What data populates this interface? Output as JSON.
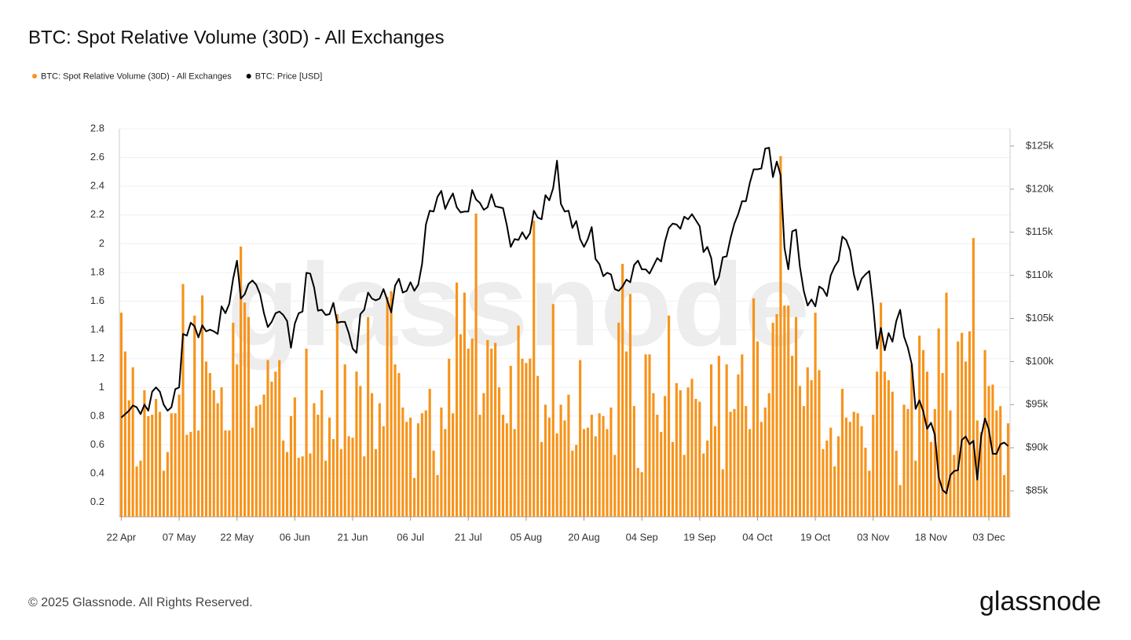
{
  "chart_data": {
    "type": "bar-line",
    "title": "BTC: Spot Relative Volume (30D) - All Exchanges",
    "watermark": "glassnode",
    "footer": "© 2025 Glassnode. All Rights Reserved.",
    "brand": "glassnode",
    "legend": "top-left",
    "grid": true,
    "categories": [
      "22 Apr",
      null,
      null,
      null,
      null,
      null,
      null,
      null,
      null,
      null,
      null,
      null,
      null,
      null,
      null,
      "07 May",
      null,
      null,
      null,
      null,
      null,
      null,
      null,
      null,
      null,
      null,
      null,
      null,
      null,
      null,
      "22 May",
      null,
      null,
      null,
      null,
      null,
      null,
      null,
      null,
      null,
      null,
      null,
      null,
      null,
      null,
      "06 Jun",
      null,
      null,
      null,
      null,
      null,
      null,
      null,
      null,
      null,
      null,
      null,
      null,
      null,
      null,
      "21 Jun",
      null,
      null,
      null,
      null,
      null,
      null,
      null,
      null,
      null,
      null,
      null,
      null,
      null,
      null,
      "06 Jul",
      null,
      null,
      null,
      null,
      null,
      null,
      null,
      null,
      null,
      null,
      null,
      null,
      null,
      null,
      "21 Jul",
      null,
      null,
      null,
      null,
      null,
      null,
      null,
      null,
      null,
      null,
      null,
      null,
      null,
      null,
      "05 Aug",
      null,
      null,
      null,
      null,
      null,
      null,
      null,
      null,
      null,
      null,
      null,
      null,
      null,
      null,
      "20 Aug",
      null,
      null,
      null,
      null,
      null,
      null,
      null,
      null,
      null,
      null,
      null,
      null,
      null,
      null,
      "04 Sep",
      null,
      null,
      null,
      null,
      null,
      null,
      null,
      null,
      null,
      null,
      null,
      null,
      null,
      null,
      "19 Sep",
      null,
      null,
      null,
      null,
      null,
      null,
      null,
      null,
      null,
      null,
      null,
      null,
      null,
      null,
      "04 Oct",
      null,
      null,
      null,
      null,
      null,
      null,
      null,
      null,
      null,
      null,
      null,
      null,
      null,
      null,
      "19 Oct",
      null,
      null,
      null,
      null,
      null,
      null,
      null,
      null,
      null,
      null,
      null,
      null,
      null,
      null,
      "03 Nov",
      null,
      null,
      null,
      null,
      null,
      null,
      null,
      null,
      null,
      null,
      null,
      null,
      null,
      null,
      "18 Nov",
      null,
      null,
      null,
      null,
      null,
      null,
      null,
      null,
      null,
      null,
      null,
      null,
      null,
      null,
      "03 Dec",
      null,
      null,
      null,
      null,
      null
    ],
    "ylim": [
      0.1,
      2.8
    ],
    "yticks": [
      0.2,
      0.4,
      0.6,
      0.8,
      1,
      1.2,
      1.4,
      1.6,
      1.8,
      2,
      2.2,
      2.4,
      2.6,
      2.8
    ],
    "y2lim": [
      82000,
      127000
    ],
    "y2ticks": [
      {
        "value": 85000,
        "label": "$85k"
      },
      {
        "value": 90000,
        "label": "$90k"
      },
      {
        "value": 95000,
        "label": "$95k"
      },
      {
        "value": 100000,
        "label": "$100k"
      },
      {
        "value": 105000,
        "label": "$105k"
      },
      {
        "value": 110000,
        "label": "$110k"
      },
      {
        "value": 115000,
        "label": "$115k"
      },
      {
        "value": 120000,
        "label": "$120k"
      },
      {
        "value": 125000,
        "label": "$125k"
      }
    ],
    "series": [
      {
        "name": "BTC: Spot Relative Volume (30D) - All Exchanges",
        "type": "bar",
        "color": "#f7931a",
        "values": [
          1.52,
          1.25,
          0.91,
          1.14,
          0.45,
          0.49,
          0.98,
          0.8,
          0.81,
          0.92,
          0.83,
          0.42,
          0.55,
          0.82,
          0.82,
          0.95,
          1.72,
          0.67,
          0.69,
          1.5,
          0.7,
          1.64,
          1.18,
          1.1,
          0.98,
          0.89,
          1.0,
          0.7,
          0.7,
          1.45,
          1.16,
          1.98,
          1.59,
          1.49,
          0.72,
          0.87,
          0.88,
          0.95,
          1.19,
          1.04,
          1.11,
          1.19,
          0.63,
          0.55,
          0.8,
          0.93,
          0.51,
          0.52,
          1.27,
          0.54,
          0.89,
          0.81,
          0.98,
          0.49,
          0.79,
          0.64,
          1.51,
          0.57,
          1.16,
          0.66,
          0.65,
          1.11,
          1.01,
          0.52,
          1.49,
          0.96,
          0.57,
          0.89,
          0.73,
          1.63,
          1.67,
          1.16,
          1.1,
          0.86,
          0.76,
          0.79,
          0.37,
          0.75,
          0.82,
          0.84,
          0.99,
          0.56,
          0.39,
          0.86,
          0.71,
          1.2,
          0.82,
          1.73,
          1.37,
          1.66,
          1.27,
          1.34,
          2.21,
          0.81,
          0.96,
          1.33,
          1.27,
          1.31,
          1.0,
          0.81,
          0.75,
          1.15,
          0.71,
          1.43,
          1.2,
          1.17,
          1.2,
          2.16,
          1.08,
          0.62,
          0.88,
          0.79,
          1.58,
          0.68,
          0.88,
          0.77,
          0.95,
          0.56,
          0.6,
          1.19,
          0.71,
          0.72,
          0.81,
          0.66,
          0.82,
          0.8,
          0.71,
          0.86,
          0.53,
          1.45,
          1.86,
          1.25,
          1.65,
          0.87,
          0.44,
          0.41,
          1.23,
          1.23,
          0.96,
          0.81,
          0.69,
          0.94,
          1.5,
          0.62,
          1.03,
          0.98,
          0.53,
          1.0,
          1.06,
          0.92,
          0.9,
          0.54,
          0.63,
          1.16,
          0.73,
          1.22,
          0.43,
          1.16,
          0.83,
          0.85,
          1.09,
          1.23,
          0.87,
          0.71,
          1.62,
          1.32,
          0.76,
          0.86,
          0.96,
          1.45,
          1.51,
          2.61,
          1.57,
          1.57,
          1.22,
          1.49,
          1.01,
          0.87,
          1.14,
          1.05,
          1.52,
          1.12,
          0.57,
          0.63,
          0.72,
          0.45,
          0.66,
          0.99,
          0.79,
          0.76,
          0.83,
          0.82,
          0.73,
          0.58,
          0.42,
          0.81,
          1.11,
          1.59,
          1.11,
          1.05,
          0.97,
          0.56,
          0.32,
          0.88,
          0.85,
          1.16,
          0.49,
          1.36,
          1.26,
          1.11,
          0.62,
          0.85,
          1.41,
          1.1,
          1.66,
          0.84,
          0.53,
          1.32,
          1.38,
          1.18,
          1.39,
          2.04,
          0.77,
          0.69,
          1.26,
          1.01,
          1.02,
          0.84,
          0.87,
          0.39,
          0.75
        ]
      },
      {
        "name": "BTC: Price [USD]",
        "type": "line",
        "axis": "y2",
        "color": "#000000",
        "values": [
          93500,
          93900,
          94300,
          94900,
          94700,
          93900,
          95000,
          94300,
          96500,
          97000,
          96500,
          95000,
          94300,
          94700,
          96800,
          97000,
          103200,
          103000,
          104500,
          104100,
          102800,
          104200,
          103500,
          103700,
          103500,
          103200,
          106400,
          105600,
          106700,
          109600,
          111700,
          107300,
          107800,
          109000,
          109400,
          108900,
          107800,
          105600,
          104000,
          104600,
          105600,
          105800,
          105400,
          104700,
          101600,
          104400,
          105600,
          105800,
          110300,
          110200,
          108600,
          105900,
          106000,
          105400,
          105500,
          106800,
          104500,
          104600,
          104600,
          103300,
          101500,
          101000,
          105500,
          106000,
          108000,
          107300,
          107100,
          107300,
          108400,
          107100,
          105700,
          108800,
          109600,
          108000,
          108200,
          109200,
          108200,
          108900,
          111300,
          115900,
          117500,
          117400,
          119100,
          119800,
          117700,
          118700,
          119500,
          117900,
          117300,
          117400,
          117400,
          119900,
          118800,
          118400,
          117600,
          117900,
          119400,
          118000,
          117900,
          117800,
          115800,
          113300,
          114200,
          114100,
          115000,
          114200,
          114900,
          117500,
          116700,
          116500,
          119300,
          118700,
          120100,
          123300,
          118300,
          117400,
          117500,
          115500,
          116300,
          114200,
          113300,
          114200,
          115600,
          111900,
          111300,
          109900,
          110300,
          110100,
          108400,
          108200,
          108700,
          109500,
          109200,
          111200,
          111700,
          110700,
          110700,
          110200,
          111100,
          112000,
          111600,
          113900,
          115500,
          116000,
          115900,
          115400,
          116800,
          116500,
          117100,
          116400,
          115700,
          112700,
          113300,
          112000,
          108900,
          109800,
          112100,
          112200,
          114300,
          116000,
          117100,
          118600,
          118600,
          120700,
          122300,
          122300,
          122400,
          124700,
          124800,
          121400,
          123200,
          121600,
          113200,
          110700,
          115100,
          115300,
          111000,
          108200,
          106500,
          107200,
          106400,
          108700,
          108400,
          107600,
          110000,
          111000,
          111700,
          114500,
          114100,
          112900,
          110100,
          108300,
          109600,
          110100,
          110500,
          106500,
          101500,
          103900,
          101300,
          103300,
          102300,
          104700,
          106000,
          102900,
          101600,
          99700,
          94500,
          95500,
          94200,
          92200,
          92900,
          91500,
          86600,
          85100,
          84700,
          86800,
          87300,
          87400,
          90900,
          91300,
          90400,
          90800,
          86300,
          91300,
          93400,
          92100,
          89300,
          89300,
          90400,
          90600,
          90200
        ]
      }
    ]
  }
}
